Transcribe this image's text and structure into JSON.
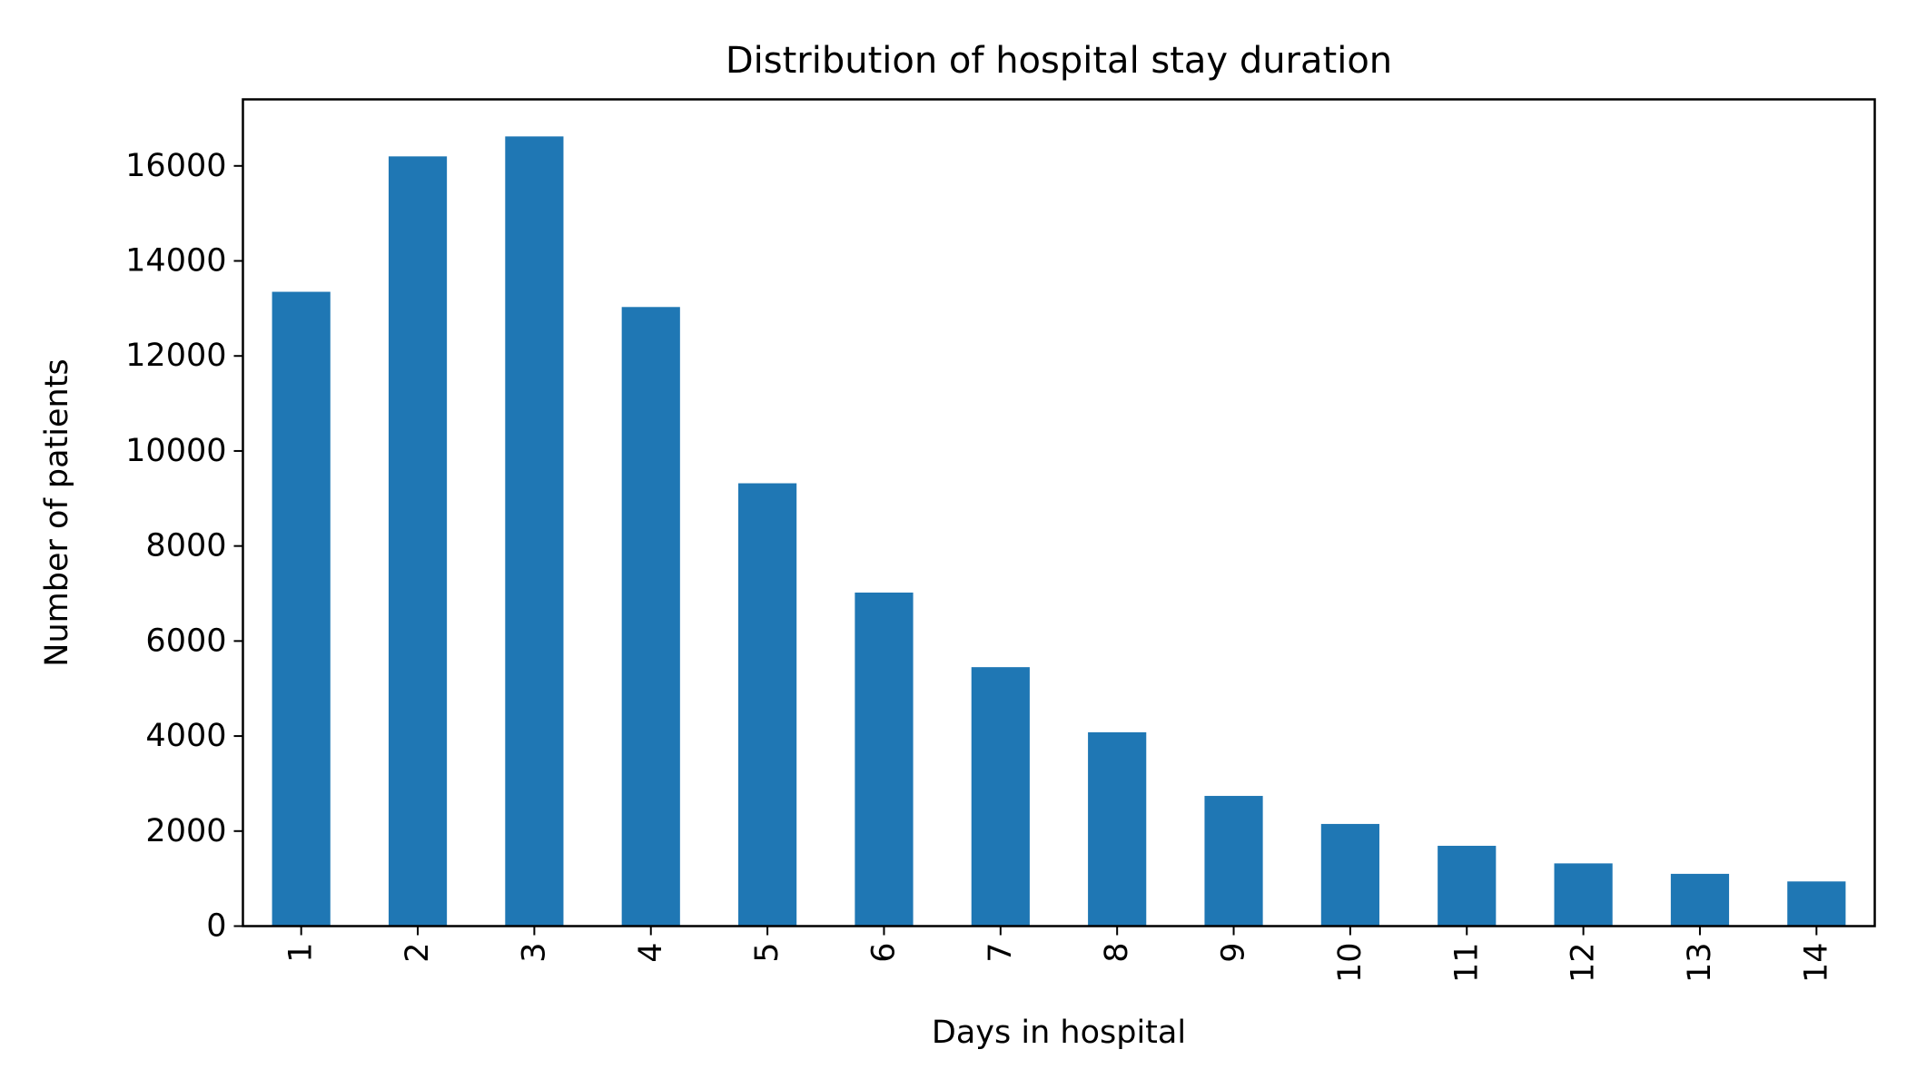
{
  "chart_data": {
    "type": "bar",
    "title": "Distribution of hospital stay duration",
    "xlabel": "Days in hospital",
    "ylabel": "Number of patients",
    "categories": [
      "1",
      "2",
      "3",
      "4",
      "5",
      "6",
      "7",
      "8",
      "9",
      "10",
      "11",
      "12",
      "13",
      "14"
    ],
    "values": [
      13350,
      16200,
      16620,
      13030,
      9320,
      7020,
      5450,
      4080,
      2740,
      2150,
      1690,
      1320,
      1100,
      940
    ],
    "yticks": [
      "0",
      "2000",
      "4000",
      "6000",
      "8000",
      "10000",
      "12000",
      "14000",
      "16000"
    ],
    "ylim": [
      0,
      17400
    ],
    "grid": false,
    "legend": "none",
    "bar_color": "#1f77b4"
  }
}
